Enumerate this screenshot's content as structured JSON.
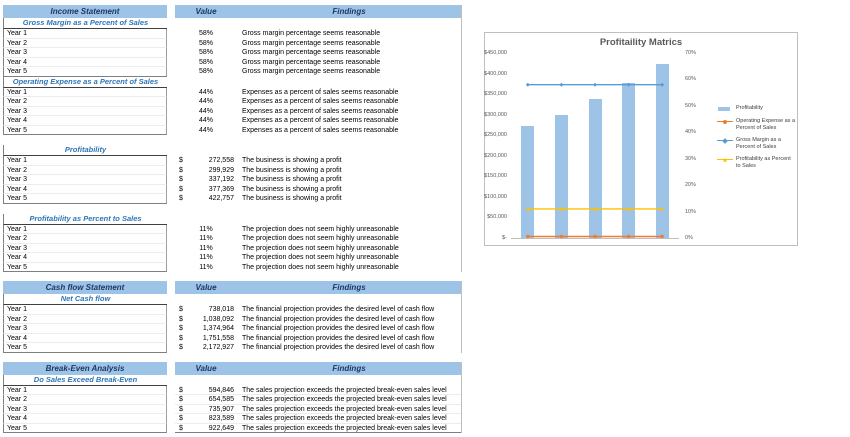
{
  "palette": {
    "band_fill": "#9DC3E6",
    "header_text": "#1F3864",
    "subheader_text": "#2E75B6",
    "bar_color": "#9DC3E6",
    "line_orange": "#ED7D31",
    "line_blue": "#5B9BD5",
    "line_yellow": "#FFC000",
    "axis_text": "#595959"
  },
  "table": {
    "sections": [
      {
        "title": "Income Statement",
        "value_header": "Value",
        "findings_header": "Findings",
        "groups": [
          {
            "subtitle": "Gross Margin as a Percent of Sales",
            "gap_before": false,
            "rows": [
              {
                "label": "Year 1",
                "format": "percent",
                "value": "58%",
                "finding": "Gross margin percentage seems reasonable"
              },
              {
                "label": "Year 2",
                "format": "percent",
                "value": "58%",
                "finding": "Gross margin percentage seems reasonable"
              },
              {
                "label": "Year 3",
                "format": "percent",
                "value": "58%",
                "finding": "Gross margin percentage seems reasonable"
              },
              {
                "label": "Year 4",
                "format": "percent",
                "value": "58%",
                "finding": "Gross margin percentage seems reasonable"
              },
              {
                "label": "Year 5",
                "format": "percent",
                "value": "58%",
                "finding": "Gross margin percentage seems reasonable"
              }
            ]
          },
          {
            "subtitle": "Operating Expense as a Percent of Sales",
            "gap_before": false,
            "rows": [
              {
                "label": "Year 1",
                "format": "percent",
                "value": "44%",
                "finding": "Expenses as a percent of sales seems reasonable"
              },
              {
                "label": "Year 2",
                "format": "percent",
                "value": "44%",
                "finding": "Expenses as a percent of sales seems reasonable"
              },
              {
                "label": "Year 3",
                "format": "percent",
                "value": "44%",
                "finding": "Expenses as a percent of sales seems reasonable"
              },
              {
                "label": "Year 4",
                "format": "percent",
                "value": "44%",
                "finding": "Expenses as a percent of sales seems reasonable"
              },
              {
                "label": "Year 5",
                "format": "percent",
                "value": "44%",
                "finding": "Expenses as a percent of sales seems reasonable"
              }
            ]
          },
          {
            "subtitle": "Profitability",
            "gap_before": true,
            "rows": [
              {
                "label": "Year 1",
                "format": "currency",
                "currency": "$",
                "value": "272,558",
                "finding": "The business is showing a profit"
              },
              {
                "label": "Year 2",
                "format": "currency",
                "currency": "$",
                "value": "299,929",
                "finding": "The business is showing a profit"
              },
              {
                "label": "Year 3",
                "format": "currency",
                "currency": "$",
                "value": "337,192",
                "finding": "The business is showing a profit"
              },
              {
                "label": "Year 4",
                "format": "currency",
                "currency": "$",
                "value": "377,369",
                "finding": "The business is showing a profit"
              },
              {
                "label": "Year 5",
                "format": "currency",
                "currency": "$",
                "value": "422,757",
                "finding": "The business is showing a profit"
              }
            ]
          },
          {
            "subtitle": "Profitability as Percent to Sales",
            "gap_before": true,
            "rows": [
              {
                "label": "Year 1",
                "format": "percent",
                "value": "11%",
                "finding": "The projection does not seem highly unreasonable"
              },
              {
                "label": "Year 2",
                "format": "percent",
                "value": "11%",
                "finding": "The projection does not seem highly unreasonable"
              },
              {
                "label": "Year 3",
                "format": "percent",
                "value": "11%",
                "finding": "The projection does not seem highly unreasonable"
              },
              {
                "label": "Year 4",
                "format": "percent",
                "value": "11%",
                "finding": "The projection does not seem highly unreasonable"
              },
              {
                "label": "Year 5",
                "format": "percent",
                "value": "11%",
                "finding": "The projection does not seem highly unreasonable"
              }
            ]
          }
        ]
      },
      {
        "title": "Cash flow Statement",
        "value_header": "Value",
        "findings_header": "Findings",
        "groups": [
          {
            "subtitle": "Net Cash flow",
            "gap_before": false,
            "rows": [
              {
                "label": "Year 1",
                "format": "currency",
                "currency": "$",
                "value": "738,018",
                "finding": "The financial projection provides the desired level of cash flow"
              },
              {
                "label": "Year 2",
                "format": "currency",
                "currency": "$",
                "value": "1,038,092",
                "finding": "The financial projection provides the desired level of cash flow"
              },
              {
                "label": "Year 3",
                "format": "currency",
                "currency": "$",
                "value": "1,374,964",
                "finding": "The financial projection provides the desired level of cash flow"
              },
              {
                "label": "Year 4",
                "format": "currency",
                "currency": "$",
                "value": "1,751,558",
                "finding": "The financial projection provides the desired level of cash flow"
              },
              {
                "label": "Year 5",
                "format": "currency",
                "currency": "$",
                "value": "2,172,927",
                "finding": "The financial projection provides the desired level of cash flow"
              }
            ]
          }
        ]
      },
      {
        "title": "Break-Even Analysis",
        "value_header": "Value",
        "findings_header": "Findings",
        "groups": [
          {
            "subtitle": "Do Sales Exceed Break-Even",
            "gap_before": false,
            "rows": [
              {
                "label": "Year 1",
                "format": "currency",
                "currency": "$",
                "value": "594,846",
                "finding": "The sales projection exceeds the projected break-even sales level"
              },
              {
                "label": "Year 2",
                "format": "currency",
                "currency": "$",
                "value": "654,585",
                "finding": "The sales projection exceeds the projected break-even sales level"
              },
              {
                "label": "Year 3",
                "format": "currency",
                "currency": "$",
                "value": "735,907",
                "finding": "The sales projection exceeds the projected break-even sales level"
              },
              {
                "label": "Year 4",
                "format": "currency",
                "currency": "$",
                "value": "823,589",
                "finding": "The sales projection exceeds the projected break-even sales level"
              },
              {
                "label": "Year 5",
                "format": "currency",
                "currency": "$",
                "value": "922,649",
                "finding": "The sales projection exceeds the projected break-even sales level"
              }
            ]
          }
        ]
      }
    ]
  },
  "chart_data": {
    "type": "bar",
    "title": "Profitaility Matrics",
    "categories": [
      "Year 1",
      "Year 2",
      "Year 3",
      "Year 4",
      "Year 5"
    ],
    "series": [
      {
        "name": "Profitability",
        "kind": "bar",
        "axis": "primary",
        "values": [
          272558,
          299929,
          337192,
          377369,
          422757
        ],
        "color": "#9DC3E6",
        "marker": "none"
      },
      {
        "name": "Operating Expense as a Percent of Sales",
        "kind": "line",
        "axis": "primary",
        "values": [
          0.44,
          0.44,
          0.44,
          0.44,
          0.44
        ],
        "color": "#ED7D31",
        "marker": "circle"
      },
      {
        "name": "Gross Margin as a Percent of Sales",
        "kind": "line",
        "axis": "secondary",
        "values": [
          0.58,
          0.58,
          0.58,
          0.58,
          0.58
        ],
        "color": "#5B9BD5",
        "marker": "diamond"
      },
      {
        "name": "Profitability as Percent to Sales",
        "kind": "line",
        "axis": "secondary",
        "values": [
          0.11,
          0.11,
          0.11,
          0.11,
          0.11
        ],
        "color": "#FFC000",
        "marker": "triangle"
      }
    ],
    "left_axis": {
      "min": 0,
      "max": 450000,
      "ticks": [
        "$450,000",
        "$400,000",
        "$350,000",
        "$300,000",
        "$250,000",
        "$200,000",
        "$150,000",
        "$100,000",
        "$50,000",
        "$-"
      ]
    },
    "right_axis": {
      "min": 0,
      "max": 0.7,
      "ticks": [
        "70%",
        "60%",
        "50%",
        "40%",
        "30%",
        "20%",
        "10%",
        "0%"
      ]
    },
    "x_axis_labels_visible": false,
    "gridlines": false,
    "legend_position": "right"
  }
}
